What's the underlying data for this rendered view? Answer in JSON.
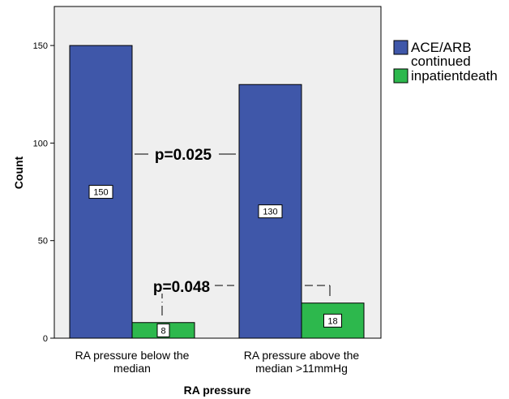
{
  "chart_data": {
    "type": "bar",
    "title": "",
    "xlabel": "RA pressure",
    "ylabel": "Count",
    "ylim": [
      0,
      170
    ],
    "yticks": [
      0,
      50,
      100,
      150
    ],
    "grid": false,
    "legend_position": "right",
    "categories": [
      [
        "RA pressure below the",
        "median"
      ],
      [
        "RA pressure above the",
        "median >11mmHg"
      ]
    ],
    "series": [
      {
        "name": [
          "ACE/ARB",
          "continued"
        ],
        "color": "#3f57a9",
        "values": [
          150,
          130
        ]
      },
      {
        "name": [
          "inpatientdeath"
        ],
        "color": "#2db84d",
        "values": [
          8,
          18
        ]
      }
    ],
    "annotations": [
      "p=0.025",
      "p=0.048"
    ],
    "colors": {
      "plot_background": "#efefef",
      "bar_border": "#000000"
    }
  }
}
